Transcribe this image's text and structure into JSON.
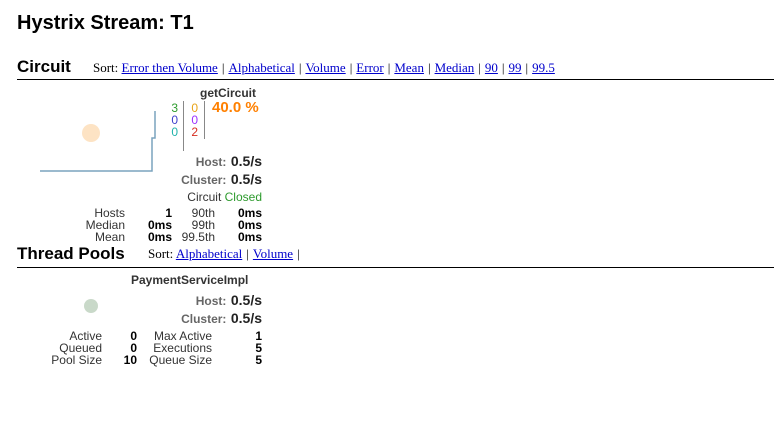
{
  "page": {
    "title": "Hystrix Stream: T1"
  },
  "circuit": {
    "section_title": "Circuit",
    "sort_label": "Sort:",
    "sort_options": [
      "Error then Volume",
      "Alphabetical",
      "Volume",
      "Error",
      "Mean",
      "Median",
      "90",
      "99",
      "99.5"
    ],
    "card": {
      "name": "getCircuit",
      "counts_col1": [
        "3",
        "0",
        "0"
      ],
      "counts_col2": [
        "0",
        "0",
        "2"
      ],
      "error_pct": "40.0 %",
      "host_label": "Host:",
      "host_rate": "0.5/s",
      "cluster_label": "Cluster:",
      "cluster_rate": "0.5/s",
      "circuit_label": "Circuit",
      "circuit_status": "Closed",
      "stats": {
        "hosts_label": "Hosts",
        "hosts": "1",
        "median_label": "Median",
        "median": "0ms",
        "mean_label": "Mean",
        "mean": "0ms",
        "p90_label": "90th",
        "p90": "0ms",
        "p99_label": "99th",
        "p99": "0ms",
        "p995_label": "99.5th",
        "p995": "0ms"
      },
      "colors": {
        "success": "#2e9b2e",
        "short_circuited": "#3d3dcc",
        "bad_request": "#20b2aa",
        "timeout": "#e8a317",
        "rejected": "#9b30ff",
        "failure": "#d62d20",
        "error_pct": "#ff8000",
        "closed": "#2e9b2e"
      }
    }
  },
  "thread_pools": {
    "section_title": "Thread Pools",
    "sort_label": "Sort:",
    "sort_options": [
      "Alphabetical",
      "Volume"
    ],
    "card": {
      "name": "PaymentServiceImpl",
      "host_label": "Host:",
      "host_rate": "0.5/s",
      "cluster_label": "Cluster:",
      "cluster_rate": "0.5/s",
      "stats": {
        "active_label": "Active",
        "active": "0",
        "queued_label": "Queued",
        "queued": "0",
        "pool_size_label": "Pool Size",
        "pool_size": "10",
        "max_active_label": "Max Active",
        "max_active": "1",
        "executions_label": "Executions",
        "executions": "5",
        "queue_size_label": "Queue Size",
        "queue_size": "5"
      }
    }
  }
}
